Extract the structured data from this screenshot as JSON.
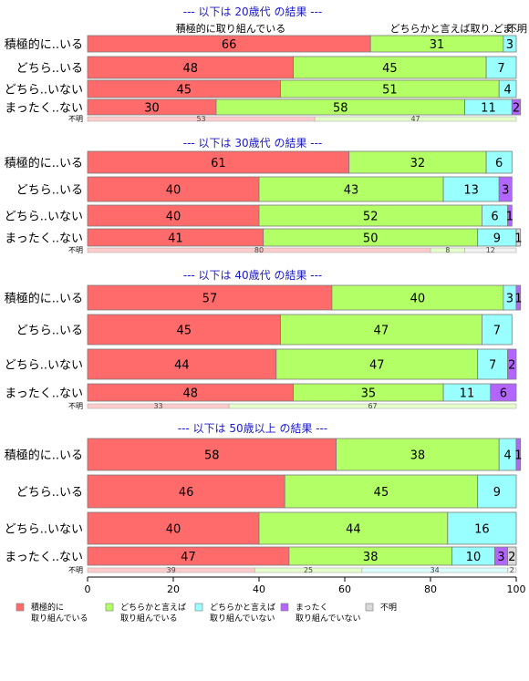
{
  "chart_data": {
    "type": "bar",
    "orientation": "horizontal",
    "stacked": true,
    "xlim": [
      0,
      100
    ],
    "x_ticks": [
      0,
      20,
      40,
      60,
      80,
      100
    ],
    "top_labels": [
      "積極的に取り組んでいる",
      "どちらかと言えば取り..",
      "ど..",
      "ま..",
      "不明"
    ],
    "series_names": [
      "積極的に取り組んでいる",
      "どちらかと言えば取り組んでいる",
      "どちらかと言えば取り組んでいない",
      "まったく取り組んでいない",
      "不明"
    ],
    "colors": [
      "#ff6b6b",
      "#b3ff66",
      "#99ffff",
      "#b366ff",
      "#d9d9d9"
    ],
    "legend": {
      "placement": "bottom",
      "items": [
        {
          "line1": "積極的に",
          "line2": "取り組んでいる"
        },
        {
          "line1": "どちらかと言えば",
          "line2": "取り組んでいる"
        },
        {
          "line1": "どちらかと言えば",
          "line2": "取り組んでいない"
        },
        {
          "line1": "まったく",
          "line2": "取り組んでいない"
        },
        {
          "line1": "不明",
          "line2": ""
        }
      ]
    },
    "unknown_label": "不明",
    "panels": [
      {
        "title": "--- 以下は 20歳代 の結果 ---",
        "rows": [
          {
            "label": "積極的に..いる",
            "values": [
              66,
              31,
              3,
              0,
              0
            ]
          },
          {
            "label": "どちら..いる",
            "values": [
              48,
              45,
              7,
              0,
              0
            ]
          },
          {
            "label": "どちら..いない",
            "values": [
              45,
              51,
              4,
              0,
              0
            ]
          },
          {
            "label": "まったく..ない",
            "values": [
              30,
              58,
              11,
              2,
              0
            ]
          }
        ],
        "unknown": [
          53,
          47,
          0,
          0,
          0
        ]
      },
      {
        "title": "--- 以下は 30歳代 の結果 ---",
        "rows": [
          {
            "label": "積極的に..いる",
            "values": [
              61,
              32,
              6,
              0,
              0
            ]
          },
          {
            "label": "どちら..いる",
            "values": [
              40,
              43,
              13,
              3,
              0
            ]
          },
          {
            "label": "どちら..いない",
            "values": [
              40,
              52,
              6,
              1,
              0
            ]
          },
          {
            "label": "まったく..ない",
            "values": [
              41,
              50,
              9,
              0,
              1
            ]
          }
        ],
        "unknown": [
          80,
          8,
          0,
          0,
          12
        ]
      },
      {
        "title": "--- 以下は 40歳代 の結果 ---",
        "rows": [
          {
            "label": "積極的に..いる",
            "values": [
              57,
              40,
              3,
              1,
              0
            ]
          },
          {
            "label": "どちら..いる",
            "values": [
              45,
              47,
              7,
              0,
              0
            ]
          },
          {
            "label": "どちら..いない",
            "values": [
              44,
              47,
              7,
              2,
              0
            ]
          },
          {
            "label": "まったく..ない",
            "values": [
              48,
              35,
              11,
              6,
              0
            ]
          }
        ],
        "unknown": [
          33,
          67,
          0,
          0,
          0
        ]
      },
      {
        "title": "--- 以下は 50歳以上 の結果 ---",
        "rows": [
          {
            "label": "積極的に..いる",
            "values": [
              58,
              38,
              4,
              1,
              0
            ]
          },
          {
            "label": "どちら..いる",
            "values": [
              46,
              45,
              9,
              0,
              0
            ]
          },
          {
            "label": "どちら..いない",
            "values": [
              40,
              44,
              16,
              0,
              0
            ]
          },
          {
            "label": "まったく..ない",
            "values": [
              47,
              38,
              10,
              3,
              2
            ]
          }
        ],
        "unknown": [
          39,
          25,
          34,
          0,
          2
        ]
      }
    ]
  }
}
